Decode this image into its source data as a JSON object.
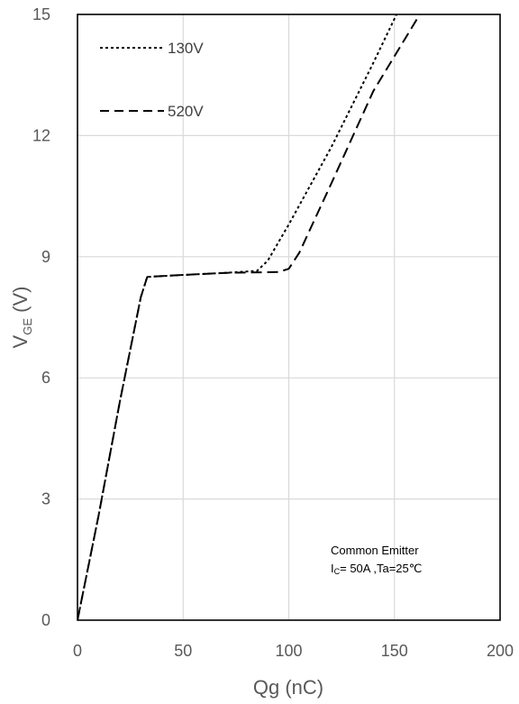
{
  "chart_data": {
    "type": "line",
    "xlabel": "Qg (nC)",
    "ylabel_main": "V",
    "ylabel_sub": "GE",
    "ylabel_unit": " (V)",
    "xlim": [
      0,
      200
    ],
    "ylim": [
      0,
      15
    ],
    "xticks": [
      0,
      50,
      100,
      150,
      200
    ],
    "yticks": [
      0,
      3,
      6,
      9,
      12,
      15
    ],
    "xtick_labels": [
      "0",
      "50",
      "100",
      "150",
      "200"
    ],
    "ytick_labels": [
      "0",
      "3",
      "6",
      "9",
      "12",
      "15"
    ],
    "grid": true,
    "legend_position": "top-left",
    "annotation": {
      "line1": "Common Emitter",
      "line2_prefix": "I",
      "line2_sub": "C",
      "line2_rest": "= 50A ,Ta=25℃"
    },
    "series": [
      {
        "name": "130V",
        "style": "dotted",
        "points": [
          [
            0,
            0
          ],
          [
            10,
            2.6
          ],
          [
            20,
            5.4
          ],
          [
            30,
            8.0
          ],
          [
            33,
            8.5
          ],
          [
            50,
            8.55
          ],
          [
            70,
            8.6
          ],
          [
            85,
            8.65
          ],
          [
            90,
            8.9
          ],
          [
            100,
            9.8
          ],
          [
            120,
            11.7
          ],
          [
            140,
            13.8
          ],
          [
            151,
            15.0
          ]
        ]
      },
      {
        "name": "520V",
        "style": "dashed",
        "points": [
          [
            0,
            0
          ],
          [
            10,
            2.6
          ],
          [
            20,
            5.4
          ],
          [
            30,
            8.0
          ],
          [
            33,
            8.5
          ],
          [
            50,
            8.55
          ],
          [
            70,
            8.6
          ],
          [
            95,
            8.62
          ],
          [
            100,
            8.7
          ],
          [
            105,
            9.1
          ],
          [
            120,
            10.8
          ],
          [
            140,
            13.1
          ],
          [
            162,
            15.0
          ]
        ]
      }
    ]
  }
}
